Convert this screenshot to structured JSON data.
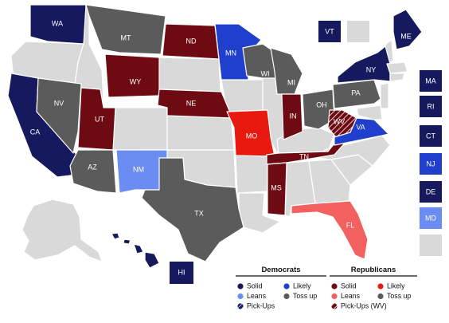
{
  "colors": {
    "solid_d": "#16195e",
    "likely_d": "#1f3fcc",
    "leans_d": "#6b8cf2",
    "pickup_d": "#8a8fd1",
    "solid_r": "#6e0b12",
    "likely_r": "#e8190f",
    "leans_r": "#f26060",
    "tossup": "#5b5b5b",
    "none": "#d9d9d9",
    "hatch": "#ffffff"
  },
  "states": [
    {
      "abbr": "WA",
      "rating": "solid_d"
    },
    {
      "abbr": "CA",
      "rating": "solid_d"
    },
    {
      "abbr": "NV",
      "rating": "tossup"
    },
    {
      "abbr": "UT",
      "rating": "solid_r"
    },
    {
      "abbr": "AZ",
      "rating": "tossup"
    },
    {
      "abbr": "NM",
      "rating": "leans_d"
    },
    {
      "abbr": "MT",
      "rating": "tossup"
    },
    {
      "abbr": "WY",
      "rating": "solid_r"
    },
    {
      "abbr": "ND",
      "rating": "solid_r"
    },
    {
      "abbr": "NE",
      "rating": "solid_r"
    },
    {
      "abbr": "TX",
      "rating": "tossup"
    },
    {
      "abbr": "MN",
      "rating": "likely_d"
    },
    {
      "abbr": "WI",
      "rating": "tossup"
    },
    {
      "abbr": "MI",
      "rating": "tossup"
    },
    {
      "abbr": "MO",
      "rating": "likely_r"
    },
    {
      "abbr": "IN",
      "rating": "solid_r"
    },
    {
      "abbr": "OH",
      "rating": "tossup"
    },
    {
      "abbr": "TN",
      "rating": "solid_r"
    },
    {
      "abbr": "MS",
      "rating": "solid_r"
    },
    {
      "abbr": "FL",
      "rating": "leans_r"
    },
    {
      "abbr": "WV",
      "rating": "pickup_r"
    },
    {
      "abbr": "VA",
      "rating": "likely_d"
    },
    {
      "abbr": "PA",
      "rating": "tossup"
    },
    {
      "abbr": "NY",
      "rating": "solid_d"
    },
    {
      "abbr": "ME",
      "rating": "solid_d"
    },
    {
      "abbr": "HI",
      "rating": "solid_d"
    }
  ],
  "side_boxes": [
    {
      "abbr": "VT",
      "rating": "solid_d"
    },
    {
      "abbr": "NH",
      "rating": "none",
      "label": ""
    },
    {
      "abbr": "MA",
      "rating": "solid_d"
    },
    {
      "abbr": "RI",
      "rating": "solid_d"
    },
    {
      "abbr": "CT",
      "rating": "solid_d"
    },
    {
      "abbr": "NJ",
      "rating": "likely_d"
    },
    {
      "abbr": "DE",
      "rating": "solid_d"
    },
    {
      "abbr": "MD",
      "rating": "leans_d"
    },
    {
      "abbr": "blank",
      "rating": "none",
      "label": ""
    }
  ],
  "legend": {
    "democrats": {
      "title": "Democrats",
      "items": [
        {
          "label": "Solid",
          "color": "solid_d"
        },
        {
          "label": "Likely",
          "color": "likely_d"
        },
        {
          "label": "Leans",
          "color": "leans_d"
        },
        {
          "label": "Toss up",
          "color": "tossup"
        },
        {
          "label": "Pick-Ups",
          "color": "pickup_d",
          "hatched": true
        }
      ]
    },
    "republicans": {
      "title": "Republicans",
      "items": [
        {
          "label": "Solid",
          "color": "solid_r"
        },
        {
          "label": "Likely",
          "color": "likely_r"
        },
        {
          "label": "Leans",
          "color": "leans_r"
        },
        {
          "label": "Toss up",
          "color": "tossup"
        },
        {
          "label": "Pick-Ups (WV)",
          "color": "solid_r",
          "hatched": true
        }
      ]
    }
  }
}
